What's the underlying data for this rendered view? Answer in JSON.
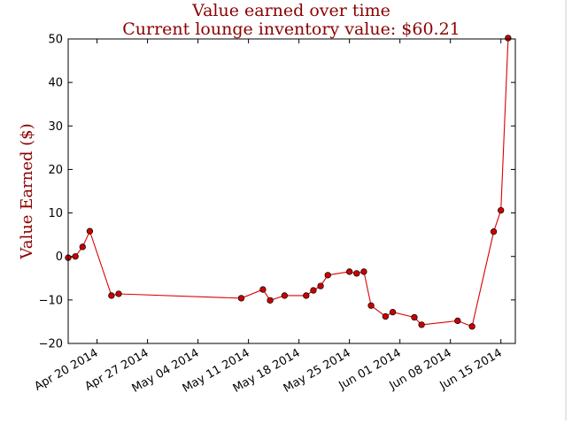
{
  "chart_data": {
    "type": "line",
    "title": "Value earned over time",
    "subtitle": "Current lounge inventory value: $60.21",
    "xlabel": "",
    "ylabel": "Value Earned ($)",
    "ylim": [
      -20,
      50
    ],
    "yticks": [
      -20,
      -10,
      0,
      10,
      20,
      30,
      40,
      50
    ],
    "ytick_labels": [
      "−20",
      "−10",
      "0",
      "10",
      "20",
      "30",
      "40",
      "50"
    ],
    "xlim": [
      "2014-04-16",
      "2014-06-17"
    ],
    "xticks": [
      "2014-04-20",
      "2014-04-27",
      "2014-05-04",
      "2014-05-11",
      "2014-05-18",
      "2014-05-25",
      "2014-06-01",
      "2014-06-08",
      "2014-06-15"
    ],
    "xtick_labels": [
      "Apr 20 2014",
      "Apr 27 2014",
      "May 04 2014",
      "May 11 2014",
      "May 18 2014",
      "May 25 2014",
      "Jun 01 2014",
      "Jun 08 2014",
      "Jun 15 2014"
    ],
    "grid": false,
    "legend": "none",
    "line_color": "#dd0000",
    "marker_color": "#cc0000",
    "series": [
      {
        "x": [
          "2014-04-16",
          "2014-04-17",
          "2014-04-18",
          "2014-04-19",
          "2014-04-22",
          "2014-04-23",
          "2014-05-10",
          "2014-05-13",
          "2014-05-14",
          "2014-05-16",
          "2014-05-19",
          "2014-05-20",
          "2014-05-21",
          "2014-05-22",
          "2014-05-25",
          "2014-05-26",
          "2014-05-27",
          "2014-05-28",
          "2014-05-30",
          "2014-05-31",
          "2014-06-03",
          "2014-06-04",
          "2014-06-09",
          "2014-06-11",
          "2014-06-14",
          "2014-06-15",
          "2014-06-16"
        ],
        "values": [
          -0.3,
          0.0,
          2.2,
          5.8,
          -9.0,
          -8.6,
          -9.6,
          -7.6,
          -10.1,
          -9.0,
          -9.0,
          -7.8,
          -6.8,
          -4.3,
          -3.5,
          -3.9,
          -3.5,
          -11.3,
          -13.8,
          -12.8,
          -14.0,
          -15.7,
          -14.8,
          -16.1,
          5.7,
          10.6,
          50.2
        ]
      }
    ]
  }
}
